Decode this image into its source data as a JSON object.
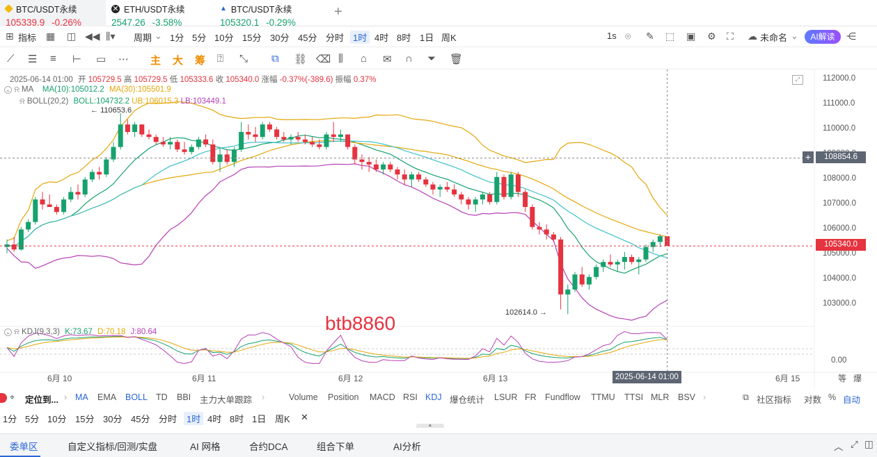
{
  "tabs": [
    {
      "symbol": "BTC/USDT永续",
      "price": "105339.9",
      "change": "-0.26%",
      "icon": "binance-coin-icon",
      "color": "#f0b90b"
    },
    {
      "symbol": "ETH/USDT永续",
      "price": "2547.26",
      "change": "-3.58%",
      "icon": "close-icon",
      "color": "#222222"
    },
    {
      "symbol": "BTC/USDT永续",
      "price": "105320.1",
      "change": "-0.29%",
      "icon": "flame-icon",
      "color": "#2a66d6"
    }
  ],
  "add_tab_label": "+",
  "toolbar1": {
    "indicator": "指标",
    "period": "周期",
    "intervals": [
      "1分",
      "5分",
      "10分",
      "15分",
      "30分",
      "45分",
      "分时",
      "1时",
      "4时",
      "8时",
      "1日",
      "周K"
    ],
    "selected_interval": "1时",
    "speed": "1s",
    "layout_name": "未命名",
    "ai_label": "AI解读"
  },
  "toolbar2": {
    "main": "主",
    "big": "大",
    "chips": "筹"
  },
  "chart_info": {
    "datetime": "2025-06-14 01:00",
    "open_label": "开",
    "open": "105729.5",
    "high_label": "高",
    "high": "105729.5",
    "low_label": "低",
    "low": "105333.6",
    "close_label": "收",
    "close": "105340.0",
    "change_label": "涨幅",
    "change": "-0.37%(-389.6)",
    "amp_label": "振幅",
    "amp": "0.37%",
    "ma_label": "MA",
    "ma10": "MA(10):105012.2",
    "ma30": "MA(30):105501.9",
    "boll_label": "BOLL(20,2)",
    "boll": "BOLL:104732.2",
    "ub": "UB:106015.3",
    "lb": "LB:103449.1",
    "kdj_label": "KDJ(9,3,3)",
    "k": "K:73.67",
    "d": "D:70.18",
    "j": "J:80.64",
    "watermark": "btb8860",
    "high_marker": "110653.6",
    "low_marker": "102614.0",
    "crosshair_price": "108854.6",
    "last_price": "105340.0",
    "crosshair_time": "2025-06-14 01:00",
    "kdj_zero": "0.00",
    "axis_ticks": [
      "112000.0",
      "111000.0",
      "110000.0",
      "109000.0",
      "108000.0",
      "107000.0",
      "106000.0",
      "105000.0",
      "104000.0",
      "103000.0"
    ],
    "date_ticks": [
      "6月 10",
      "6月 11",
      "6月 12",
      "6月 13",
      "6月 15"
    ],
    "right_corner": [
      "等",
      "爆"
    ]
  },
  "chart_data": {
    "type": "candlestick",
    "ohlc": [
      [
        105300,
        105600,
        105050,
        105400
      ],
      [
        105400,
        105700,
        105100,
        105200
      ],
      [
        105200,
        106100,
        105150,
        106000
      ],
      [
        106000,
        106400,
        105900,
        106300
      ],
      [
        106300,
        107300,
        106200,
        107200
      ],
      [
        107200,
        107500,
        106800,
        107000
      ],
      [
        107000,
        107400,
        106900,
        106900
      ],
      [
        106900,
        107000,
        106600,
        106700
      ],
      [
        106700,
        107300,
        106600,
        107200
      ],
      [
        107200,
        107700,
        107100,
        107500
      ],
      [
        107500,
        107800,
        107200,
        107400
      ],
      [
        107400,
        108100,
        107300,
        108000
      ],
      [
        108000,
        108400,
        107900,
        108300
      ],
      [
        108300,
        108500,
        108000,
        108200
      ],
      [
        108200,
        108900,
        108100,
        108800
      ],
      [
        108800,
        109500,
        108700,
        109300
      ],
      [
        109300,
        110650,
        109200,
        110200
      ],
      [
        110200,
        110400,
        109800,
        109900
      ],
      [
        109900,
        110300,
        109700,
        110200
      ],
      [
        110200,
        110200,
        109700,
        109800
      ],
      [
        109800,
        110000,
        109600,
        109700
      ],
      [
        109700,
        109800,
        109400,
        109500
      ],
      [
        109500,
        109700,
        109300,
        109400
      ],
      [
        109400,
        109700,
        109200,
        109500
      ],
      [
        109500,
        109600,
        109100,
        109200
      ],
      [
        109200,
        109500,
        109000,
        109100
      ],
      [
        109100,
        109400,
        109000,
        109300
      ],
      [
        109300,
        109700,
        109200,
        109600
      ],
      [
        109600,
        109800,
        109300,
        109400
      ],
      [
        109400,
        109600,
        108600,
        108700
      ],
      [
        108700,
        109300,
        108300,
        109000
      ],
      [
        109000,
        109200,
        108600,
        108700
      ],
      [
        108700,
        109300,
        108500,
        109200
      ],
      [
        109200,
        110300,
        109100,
        109900
      ],
      [
        109900,
        110200,
        109600,
        109800
      ],
      [
        109800,
        110100,
        109500,
        109700
      ],
      [
        109700,
        110300,
        109600,
        110200
      ],
      [
        110200,
        110300,
        109900,
        110000
      ],
      [
        110000,
        110100,
        109600,
        109700
      ],
      [
        109700,
        109900,
        109500,
        109600
      ],
      [
        109600,
        109800,
        109400,
        109700
      ],
      [
        109700,
        109900,
        109500,
        109600
      ],
      [
        109600,
        109800,
        109400,
        109500
      ],
      [
        109500,
        109700,
        109300,
        109400
      ],
      [
        109400,
        109600,
        109200,
        109300
      ],
      [
        109300,
        109900,
        109200,
        109800
      ],
      [
        109800,
        110300,
        109500,
        109700
      ],
      [
        109700,
        110000,
        109500,
        109800
      ],
      [
        109800,
        109800,
        109200,
        109300
      ],
      [
        109300,
        109400,
        108600,
        108800
      ],
      [
        108800,
        109000,
        108400,
        108700
      ],
      [
        108700,
        108900,
        108300,
        108600
      ],
      [
        108600,
        108800,
        108300,
        108400
      ],
      [
        108400,
        108700,
        108200,
        108600
      ],
      [
        108600,
        108700,
        108300,
        108400
      ],
      [
        108400,
        108500,
        108000,
        108200
      ],
      [
        108200,
        108400,
        107800,
        108000
      ],
      [
        108000,
        108300,
        107700,
        108200
      ],
      [
        108200,
        108300,
        107900,
        108000
      ],
      [
        108000,
        108100,
        107700,
        107800
      ],
      [
        107800,
        107900,
        107400,
        107600
      ],
      [
        107600,
        107800,
        107300,
        107700
      ],
      [
        107700,
        107900,
        107500,
        107600
      ],
      [
        107600,
        107800,
        107300,
        107400
      ],
      [
        107400,
        107500,
        107000,
        107200
      ],
      [
        107200,
        107300,
        106800,
        107000
      ],
      [
        107000,
        107300,
        106700,
        107200
      ],
      [
        107200,
        107500,
        107000,
        107400
      ],
      [
        107400,
        107500,
        107000,
        107100
      ],
      [
        107100,
        108300,
        107000,
        108100
      ],
      [
        108100,
        108200,
        107200,
        107300
      ],
      [
        107300,
        108300,
        107200,
        108200
      ],
      [
        108200,
        108300,
        107300,
        107500
      ],
      [
        107500,
        107600,
        106700,
        106900
      ],
      [
        106900,
        107000,
        106000,
        106100
      ],
      [
        106100,
        106300,
        105800,
        106000
      ],
      [
        106000,
        106200,
        105600,
        105800
      ],
      [
        105800,
        105900,
        105500,
        105600
      ],
      [
        105600,
        105700,
        102800,
        103400
      ],
      [
        103400,
        103800,
        102614,
        103600
      ],
      [
        103600,
        104300,
        103500,
        104200
      ],
      [
        104200,
        104500,
        103700,
        103800
      ],
      [
        103800,
        104200,
        103600,
        104100
      ],
      [
        104100,
        104600,
        104000,
        104500
      ],
      [
        104500,
        104800,
        104300,
        104700
      ],
      [
        104700,
        105000,
        104500,
        104600
      ],
      [
        104600,
        104800,
        104300,
        104700
      ],
      [
        104700,
        105100,
        104400,
        104900
      ],
      [
        104900,
        105000,
        104600,
        104700
      ],
      [
        104700,
        104900,
        104200,
        104800
      ],
      [
        104800,
        105400,
        104700,
        105300
      ],
      [
        105300,
        105600,
        105100,
        105500
      ],
      [
        105500,
        105800,
        105300,
        105730
      ],
      [
        105730,
        105730,
        105334,
        105340
      ]
    ],
    "ylim": [
      102400,
      112400
    ]
  },
  "indicators": {
    "items": [
      "MA",
      "EMA",
      "BOLL",
      "TD",
      "BBI",
      "主力大单跟踪",
      "Volume",
      "Position",
      "MACD",
      "RSI",
      "KDJ",
      "爆仓统计",
      "LSUR",
      "FR",
      "Fundflow",
      "TTMU",
      "TTSI",
      "MLR",
      "BSV"
    ],
    "active": [
      "MA",
      "BOLL",
      "KDJ"
    ],
    "locate": "定位到...",
    "community": "社区指标",
    "log_scale": "对数",
    "percent": "%",
    "auto": "自动"
  },
  "periods": [
    "1分",
    "5分",
    "10分",
    "15分",
    "30分",
    "45分",
    "分时",
    "1时",
    "4时",
    "8时",
    "1日",
    "周K"
  ],
  "period_selected": "1时",
  "bottom_tabs": [
    "委单区",
    "自定义指标/回测/实盘",
    "AI 网格",
    "合约DCA",
    "组合下单",
    "AI分析"
  ]
}
